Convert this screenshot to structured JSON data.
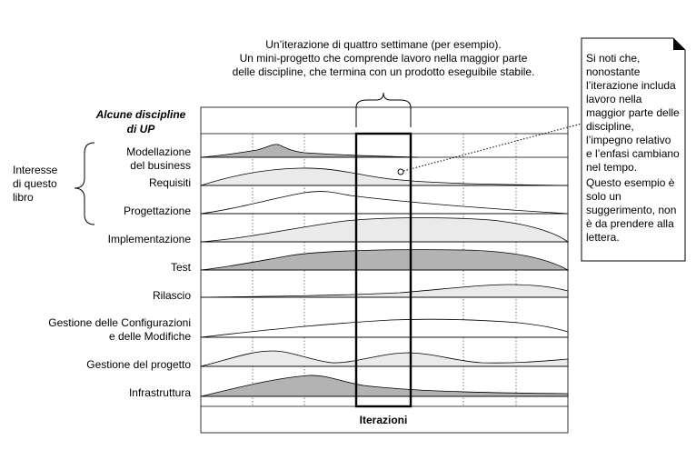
{
  "callout": {
    "lines": [
      "Un’iterazione di quattro settimane (per esempio).",
      "Un mini-progetto che comprende lavoro nella maggior parte",
      "delle discipline, che termina con un prodotto eseguibile stabile."
    ]
  },
  "header": {
    "title_line1": "Alcune discipline",
    "title_line2": "di UP"
  },
  "interest": {
    "lines": [
      "Interesse",
      "di questo",
      "libro"
    ]
  },
  "disciplines": [
    {
      "lines": [
        "Modellazione",
        "del business"
      ],
      "fill": "#b3b3b3"
    },
    {
      "lines": [
        "Requisiti"
      ],
      "fill": "#eaeaea"
    },
    {
      "lines": [
        "Progettazione"
      ],
      "fill": "#ffffff"
    },
    {
      "lines": [
        "Implementazione"
      ],
      "fill": "#eaeaea"
    },
    {
      "lines": [
        "Test"
      ],
      "fill": "#b3b3b3"
    },
    {
      "lines": [
        "Rilascio"
      ],
      "fill": "#eaeaea"
    },
    {
      "lines": [
        "Gestione delle Configurazioni",
        "e delle Modifiche"
      ],
      "fill": "#ffffff"
    },
    {
      "lines": [
        "Gestione del progetto"
      ],
      "fill": "#eaeaea"
    },
    {
      "lines": [
        "Infrastruttura"
      ],
      "fill": "#b3b3b3"
    }
  ],
  "footer": {
    "label": "Iterazioni"
  },
  "note": {
    "paragraph1": "Si noti che, nonostante l’iterazione includa lavoro nella maggior parte delle discipline, l’impegno relativo e l’enfasi cambiano nel tempo.",
    "paragraph2": "Questo esempio è solo un suggerimento, non è da prendere alla lettera."
  }
}
